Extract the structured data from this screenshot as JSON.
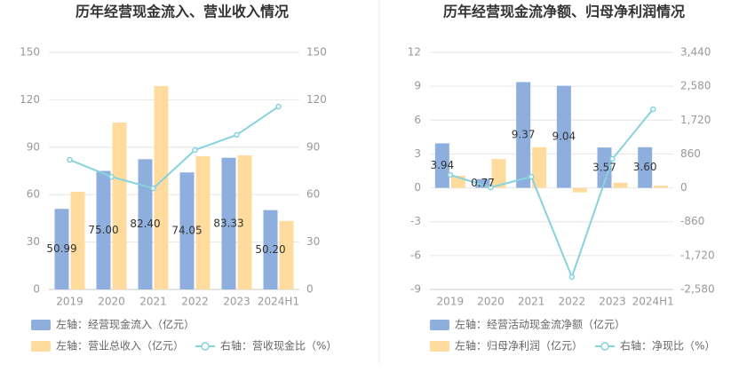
{
  "chart_data": [
    {
      "type": "bar",
      "title": "历年经营现金流入、营业收入情况",
      "categories": [
        "2019",
        "2020",
        "2021",
        "2022",
        "2023",
        "2024H1"
      ],
      "series": [
        {
          "name": "左轴：经营现金流入（亿元）",
          "color": "#8eaedd",
          "values": [
            50.99,
            75.0,
            82.4,
            74.05,
            83.33,
            50.2
          ],
          "value_labels": [
            "50.99",
            "75.00",
            "82.40",
            "74.05",
            "83.33",
            "50.20"
          ]
        },
        {
          "name": "左轴：营业总收入（亿元）",
          "color": "#ffdb9e",
          "values": [
            61.8,
            105.6,
            128.7,
            84.3,
            84.8,
            43.3
          ]
        },
        {
          "name": "右轴：营收现金比（%）",
          "color": "#86d3dd",
          "type": "line",
          "axis": "y2",
          "values": [
            82,
            71.3,
            64,
            88.2,
            97.8,
            115.7
          ]
        }
      ],
      "ylim": [
        0,
        150
      ],
      "yticks": [
        0,
        30,
        60,
        90,
        120,
        150
      ],
      "y2lim": [
        0,
        150
      ],
      "y2ticks": [
        0,
        30,
        60,
        90,
        120,
        150
      ],
      "grid": true
    },
    {
      "type": "bar",
      "title": "历年经营现金流净额、归母净利润情况",
      "categories": [
        "2019",
        "2020",
        "2021",
        "2022",
        "2023",
        "2024H1"
      ],
      "series": [
        {
          "name": "左轴：经营活动现金流净额（亿元）",
          "color": "#8eaedd",
          "values": [
            3.94,
            0.77,
            9.37,
            9.04,
            3.57,
            3.6
          ],
          "value_labels": [
            "3.94",
            "0.77",
            "9.37",
            "9.04",
            "3.57",
            "3.60"
          ]
        },
        {
          "name": "左轴：归母净利润（亿元）",
          "color": "#ffdb9e",
          "values": [
            1.07,
            2.55,
            3.6,
            -0.4,
            0.45,
            0.2
          ]
        },
        {
          "name": "右轴：净现比（%）",
          "color": "#86d3dd",
          "type": "line",
          "axis": "y2",
          "values": [
            329,
            10,
            284,
            -2264,
            735,
            1997
          ]
        }
      ],
      "ylim": [
        -9,
        12
      ],
      "yticks": [
        -9,
        -6,
        -3,
        0,
        3,
        6,
        9,
        12
      ],
      "y2lim": [
        -2580,
        3440
      ],
      "y2ticks": [
        {
          "value": -2580,
          "label": "-2,580"
        },
        {
          "value": -1720,
          "label": "-1,720"
        },
        -860,
        0,
        860,
        {
          "value": 1720,
          "label": "1,720"
        },
        {
          "value": 2580,
          "label": "2,580"
        },
        {
          "value": 3440,
          "label": "3,440"
        }
      ],
      "grid": true
    }
  ]
}
